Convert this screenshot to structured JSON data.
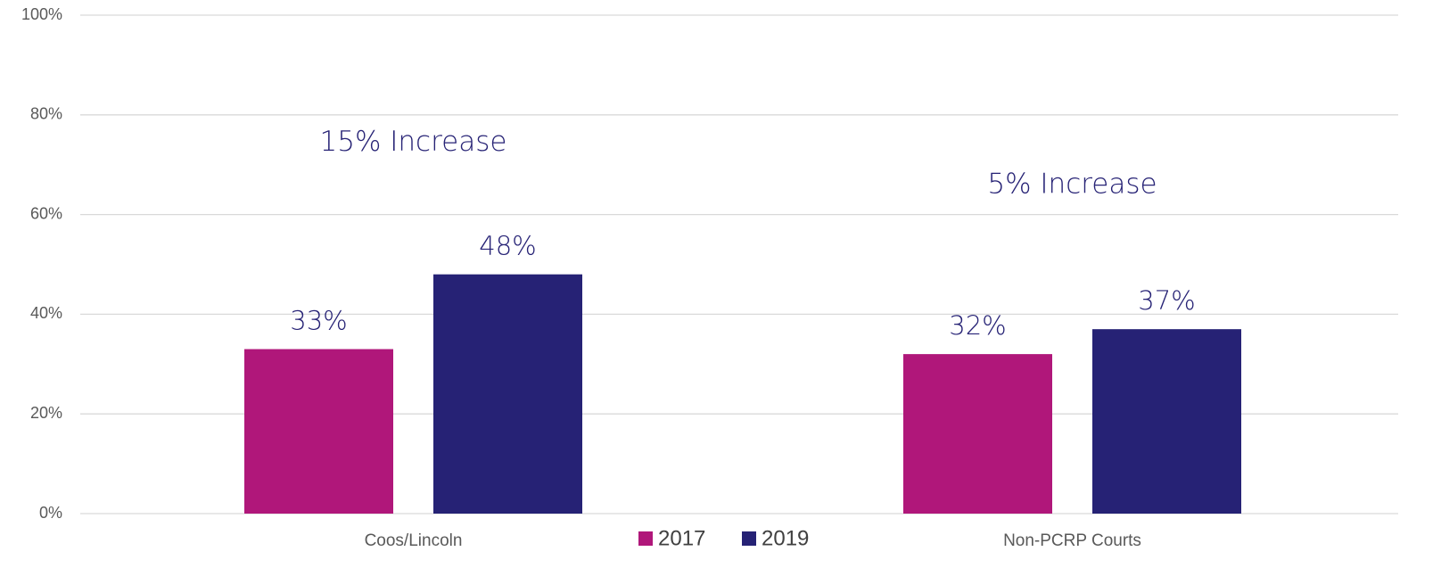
{
  "chart_data": {
    "type": "bar",
    "categories": [
      "Coos/Lincoln",
      "Non-PCRP Courts"
    ],
    "series": [
      {
        "name": "2017",
        "color": "#b0177a",
        "values": [
          33,
          32
        ],
        "value_labels": [
          "33%",
          "32%"
        ]
      },
      {
        "name": "2019",
        "color": "#262275",
        "values": [
          48,
          37
        ],
        "value_labels": [
          "48%",
          "37%"
        ]
      }
    ],
    "annotations": [
      "15% Increase",
      "5% Increase"
    ],
    "ylim": [
      0,
      100
    ],
    "yticks": [
      {
        "value": 0,
        "label": "0%"
      },
      {
        "value": 20,
        "label": "20%"
      },
      {
        "value": 40,
        "label": "40%"
      },
      {
        "value": 60,
        "label": "60%"
      },
      {
        "value": 80,
        "label": "80%"
      },
      {
        "value": 100,
        "label": "100%"
      }
    ],
    "grid": true,
    "legend": "bottom"
  }
}
